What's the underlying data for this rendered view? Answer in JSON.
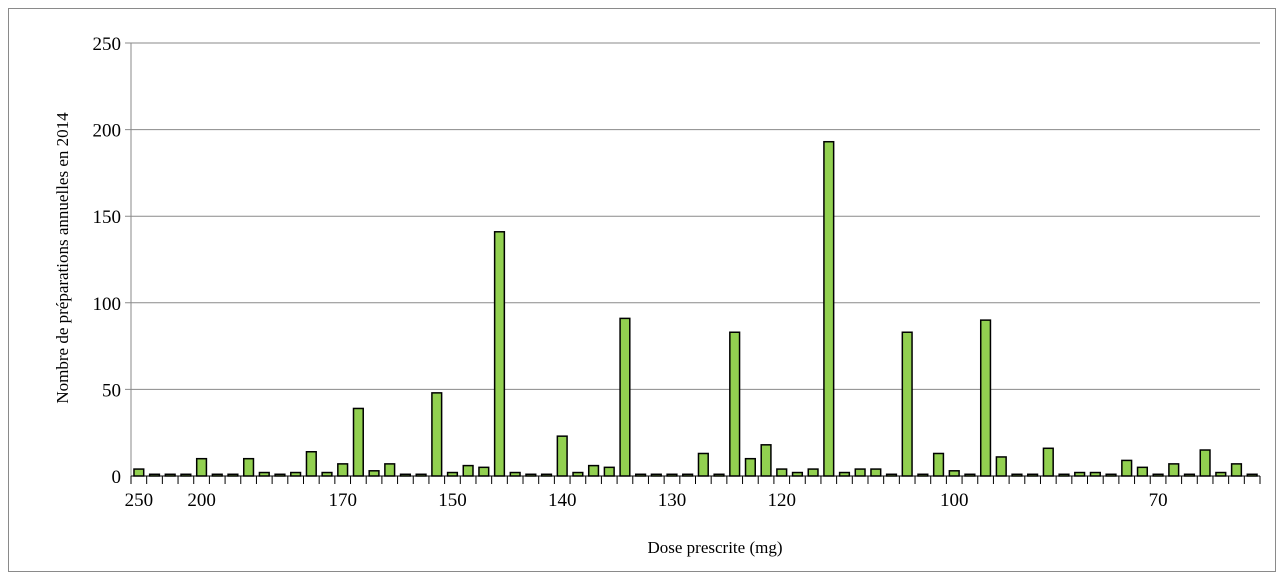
{
  "chart_data": {
    "type": "bar",
    "title": "",
    "xlabel": "Dose prescrite (mg)",
    "ylabel": "Nombre de préparations annuelles en 2014",
    "ylim": [
      0,
      250
    ],
    "yticks": [
      "0",
      "50",
      "100",
      "150",
      "200",
      "250"
    ],
    "x_tick_labels": [
      {
        "index": 0,
        "label": "250"
      },
      {
        "index": 4,
        "label": "200"
      },
      {
        "index": 13,
        "label": "170"
      },
      {
        "index": 20,
        "label": "150"
      },
      {
        "index": 27,
        "label": "140"
      },
      {
        "index": 34,
        "label": "130"
      },
      {
        "index": 41,
        "label": "120"
      },
      {
        "index": 52,
        "label": "100"
      },
      {
        "index": 65,
        "label": "70"
      }
    ],
    "values": [
      4,
      1,
      1,
      1,
      10,
      1,
      1,
      10,
      2,
      1,
      2,
      14,
      2,
      7,
      39,
      3,
      7,
      1,
      1,
      48,
      2,
      6,
      5,
      141,
      2,
      1,
      1,
      23,
      2,
      6,
      5,
      91,
      1,
      1,
      1,
      1,
      13,
      1,
      83,
      10,
      18,
      4,
      2,
      4,
      193,
      2,
      4,
      4,
      1,
      83,
      1,
      13,
      3,
      1,
      90,
      11,
      1,
      1,
      16,
      1,
      2,
      2,
      1,
      9,
      5,
      1,
      7,
      1,
      15,
      2,
      7,
      1
    ],
    "bar_color": "#92D050",
    "bar_edge_color": "#000000",
    "gridlines": true
  }
}
